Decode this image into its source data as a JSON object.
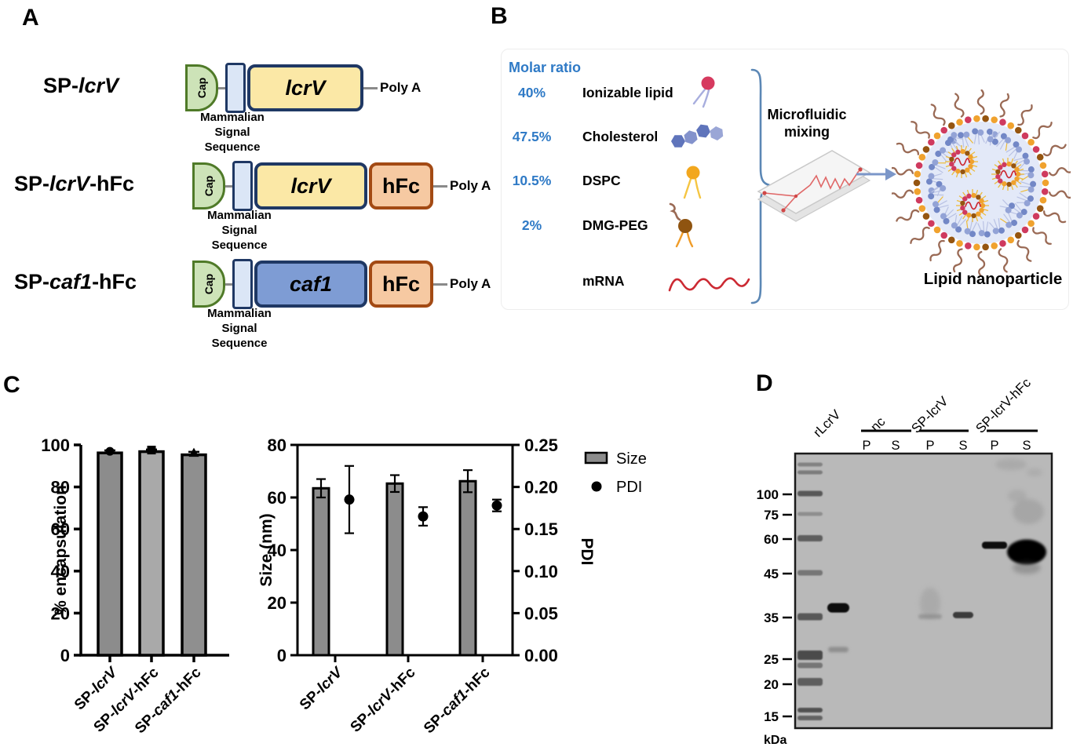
{
  "panel_a": {
    "label": "A",
    "cap_label": "Cap",
    "signal_lines": [
      "Mammalian",
      "Signal",
      "Sequence"
    ],
    "poly_a_label": "Poly A",
    "hfc_label": "hFc",
    "constructs": [
      {
        "prefix": "SP-",
        "gene": "lcrV",
        "suffix": "",
        "gene_box": "lcrV",
        "gene_box_color": "yellow",
        "has_hfc": false
      },
      {
        "prefix": "SP-",
        "gene": "lcrV",
        "suffix": "-hFc",
        "gene_box": "lcrV",
        "gene_box_color": "yellow",
        "has_hfc": true
      },
      {
        "prefix": "SP-",
        "gene": "caf1",
        "suffix": "-hFc",
        "gene_box": "caf1",
        "gene_box_color": "blue",
        "has_hfc": true
      }
    ]
  },
  "panel_b": {
    "label": "B",
    "molar_ratio_title": "Molar ratio",
    "components": [
      {
        "ratio": "40%",
        "name": "Ionizable lipid",
        "icon": "ionizable-lipid-icon"
      },
      {
        "ratio": "47.5%",
        "name": "Cholesterol",
        "icon": "cholesterol-icon"
      },
      {
        "ratio": "10.5%",
        "name": "DSPC",
        "icon": "dspc-icon"
      },
      {
        "ratio": "2%",
        "name": "DMG-PEG",
        "icon": "dmg-peg-icon"
      },
      {
        "ratio": "",
        "name": "mRNA",
        "icon": "mrna-icon"
      }
    ],
    "process_line1": "Microfluidic",
    "process_line2": "mixing",
    "product_label": "Lipid nanoparticle"
  },
  "panel_c": {
    "label": "C"
  },
  "chart_data": [
    {
      "type": "bar",
      "title": "",
      "ylabel": "% encapsulation",
      "categories": [
        {
          "prefix": "SP-",
          "gene": "lcrV",
          "suffix": ""
        },
        {
          "prefix": "SP-",
          "gene": "lcrV",
          "suffix": "-hFc"
        },
        {
          "prefix": "SP-",
          "gene": "caf1",
          "suffix": "-hFc"
        }
      ],
      "values": [
        96.2,
        96.8,
        95.3
      ],
      "errors": [
        1.2,
        1.0,
        1.4
      ],
      "point_markers": [
        "circle",
        "square",
        "triangle"
      ],
      "bar_colors": [
        "#8c8c8c",
        "#a9a9a9",
        "#8f8f8f"
      ],
      "ylim": [
        0,
        100
      ],
      "yticks": [
        0,
        20,
        40,
        60,
        80,
        100
      ],
      "grid": false
    },
    {
      "type": "bar",
      "title": "",
      "dual_axis": true,
      "categories": [
        {
          "prefix": "SP-",
          "gene": "lcrV",
          "suffix": ""
        },
        {
          "prefix": "SP-",
          "gene": "lcrV",
          "suffix": "-hFc"
        },
        {
          "prefix": "SP-",
          "gene": "caf1",
          "suffix": "-hFc"
        }
      ],
      "series": [
        {
          "name": "Size",
          "type": "bar",
          "axis": "left",
          "values": [
            63.5,
            65.3,
            66.2
          ],
          "errors": [
            3.5,
            3.2,
            4.2
          ],
          "color": "#8c8c8c"
        },
        {
          "name": "PDI",
          "type": "scatter",
          "axis": "right",
          "values": [
            0.185,
            0.165,
            0.178
          ],
          "errors": [
            0.04,
            0.011,
            0.007
          ],
          "color": "#000000"
        }
      ],
      "ylabel_left": "Size (nm)",
      "ylabel_right": "PDI",
      "ylim_left": [
        0,
        80
      ],
      "yticks_left": [
        0,
        20,
        40,
        60,
        80
      ],
      "ylim_right": [
        0,
        0.25
      ],
      "yticks_right": [
        0,
        0.05,
        0.1,
        0.15,
        0.2,
        0.25
      ],
      "legend": [
        {
          "label": "Size",
          "marker": "bar"
        },
        {
          "label": "PDI",
          "marker": "dot"
        }
      ],
      "legend_position": "right",
      "grid": false
    }
  ],
  "panel_d": {
    "label": "D",
    "groups": [
      {
        "label": "rLcrV",
        "sublanes": []
      },
      {
        "label": "nc",
        "sublanes": [
          "P",
          "S"
        ]
      },
      {
        "label": "SP-lcrV",
        "sublanes": [
          "P",
          "S"
        ]
      },
      {
        "label": "SP-lcrV-hFc",
        "sublanes": [
          "P",
          "S"
        ]
      }
    ],
    "mw_markers": [
      "100",
      "75",
      "60",
      "45",
      "35",
      "25",
      "20",
      "15"
    ],
    "unit_label": "kDa",
    "bands": [
      {
        "lane": "rLcrV",
        "kda": 37,
        "style": "strong"
      },
      {
        "lane": "rLcrV",
        "kda": 27,
        "style": "faint"
      },
      {
        "lane": "SP-lcrV P",
        "kda": 36,
        "style": "smear"
      },
      {
        "lane": "SP-lcrV S",
        "kda": 35.5,
        "style": "medium"
      },
      {
        "lane": "SP-lcrV-hFc P",
        "kda": 57,
        "style": "strong-thin"
      },
      {
        "lane": "SP-lcrV-hFc S",
        "kda": 56,
        "style": "blob"
      }
    ]
  },
  "colors": {
    "accent_blue_text": "#2f7ac6",
    "brace_blue": "#5b87b5",
    "arrow_blue": "#7b96c8",
    "cap_fill": "#cde3b8",
    "cap_border": "#4f7a28",
    "signal_fill": "#dbe6f6",
    "signal_border": "#1f3864",
    "gene_yellow_fill": "#fbe8a6",
    "gene_blue_fill": "#7e9cd4",
    "gene_border": "#1f3864",
    "hfc_fill": "#f6c9a2",
    "hfc_border": "#a34a14",
    "bar_gray": "#8c8c8c",
    "gel_bg": "#b9b9b9",
    "lnp_orange": "#f0a22e",
    "lnp_crimson": "#cf3a5e",
    "lnp_brown": "#955510",
    "lnp_inner": "#e3e9f8",
    "lnp_lipid_blue": "#7287c6",
    "lnp_lipid_blue2": "#93a3d6",
    "lnp_peg": "#9a6a55",
    "mrna_red": "#cc2a33",
    "ionizable_head": "#d63a5f",
    "ionizable_tail": "#a8aede",
    "chol_blue1": "#5f74bb",
    "chol_blue2": "#7d8fcc",
    "chol_blue3": "#9aa6d6",
    "dspc_head": "#f2a71e",
    "dspc_tail": "#f5c542",
    "dmg_head": "#8f5410",
    "dmg_tail": "#f09c28",
    "yellow_tail": "#edbb3a"
  }
}
